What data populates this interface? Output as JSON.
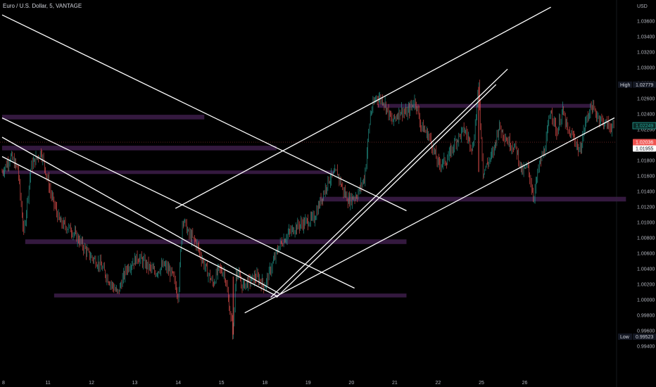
{
  "header": {
    "symbol_title": "Euro / U.S. Dollar, 5, VANTAGE"
  },
  "chart_data": {
    "type": "candlestick",
    "currency": "USD",
    "ylim": [
      0.99,
      1.038
    ],
    "y_ticks": [
      "0.99400",
      "0.99600",
      "0.99800",
      "1.00000",
      "1.00200",
      "1.00400",
      "1.00600",
      "1.00800",
      "1.01000",
      "1.01200",
      "1.01400",
      "1.01600",
      "1.01800",
      "1.02000",
      "1.02200",
      "1.02400",
      "1.02600",
      "1.02800",
      "1.03000",
      "1.03200",
      "1.03400",
      "1.03600"
    ],
    "x_ticks": [
      "8",
      "11",
      "12",
      "13",
      "14",
      "15",
      "18",
      "19",
      "20",
      "21",
      "22",
      "25",
      "26"
    ],
    "price_tags": {
      "high": {
        "label": "High",
        "value": "1.02779"
      },
      "last_green": {
        "value": "1.02249"
      },
      "current": {
        "value": "1.02036",
        "countdown": "02:51"
      },
      "white": {
        "value": "1.01955"
      },
      "low": {
        "label": "Low",
        "value": "0.99523"
      }
    },
    "price_path": [
      [
        0,
        1.0165
      ],
      [
        0.3,
        1.0185
      ],
      [
        0.55,
        1.0168
      ],
      [
        0.75,
        1.0085
      ],
      [
        1,
        1.0172
      ],
      [
        1.35,
        1.0192
      ],
      [
        1.7,
        1.0135
      ],
      [
        2,
        1.01
      ],
      [
        2.4,
        1.009
      ],
      [
        2.7,
        1.0075
      ],
      [
        3,
        1.0058
      ],
      [
        3.4,
        1.0045
      ],
      [
        3.7,
        1.0025
      ],
      [
        4,
        1.0008
      ],
      [
        4.3,
        1.004
      ],
      [
        4.7,
        1.0055
      ],
      [
        5,
        1.0045
      ],
      [
        5.3,
        1.0035
      ],
      [
        5.6,
        1.0045
      ],
      [
        5.9,
        1.0032
      ],
      [
        6.1,
        1.0005
      ],
      [
        6.25,
        1.0108
      ],
      [
        6.45,
        1.0085
      ],
      [
        6.7,
        1.0075
      ],
      [
        7,
        1.0045
      ],
      [
        7.3,
        1.002
      ],
      [
        7.5,
        1.004
      ],
      [
        7.7,
        1.0035
      ],
      [
        8,
        0.9955
      ],
      [
        8.1,
        1.004
      ],
      [
        8.3,
        1.0018
      ],
      [
        8.6,
        1.0025
      ],
      [
        8.8,
        1.003
      ],
      [
        9.1,
        1.0018
      ],
      [
        9.3,
        1.004
      ],
      [
        9.6,
        1.007
      ],
      [
        9.9,
        1.0085
      ],
      [
        10.2,
        1.0095
      ],
      [
        10.5,
        1.01
      ],
      [
        10.8,
        1.0105
      ],
      [
        11,
        1.0125
      ],
      [
        11.3,
        1.0155
      ],
      [
        11.6,
        1.0165
      ],
      [
        11.8,
        1.0142
      ],
      [
        12,
        1.0128
      ],
      [
        12.3,
        1.0136
      ],
      [
        12.55,
        1.0158
      ],
      [
        12.75,
        1.024
      ],
      [
        12.95,
        1.0262
      ],
      [
        13.2,
        1.0258
      ],
      [
        13.5,
        1.023
      ],
      [
        13.8,
        1.0245
      ],
      [
        14,
        1.024
      ],
      [
        14.3,
        1.0258
      ],
      [
        14.5,
        1.0225
      ],
      [
        14.8,
        1.021
      ],
      [
        15.1,
        1.0175
      ],
      [
        15.4,
        1.018
      ],
      [
        15.7,
        1.0205
      ],
      [
        16,
        1.022
      ],
      [
        16.3,
        1.0195
      ],
      [
        16.5,
        1.0275
      ],
      [
        16.65,
        1.0165
      ],
      [
        17,
        1.019
      ],
      [
        17.2,
        1.0225
      ],
      [
        17.5,
        1.0205
      ],
      [
        17.8,
        1.0195
      ],
      [
        18,
        1.0165
      ],
      [
        18.2,
        1.0172
      ],
      [
        18.4,
        1.0132
      ],
      [
        18.6,
        1.0175
      ],
      [
        18.8,
        1.0195
      ],
      [
        19,
        1.0248
      ],
      [
        19.2,
        1.0215
      ],
      [
        19.4,
        1.0245
      ],
      [
        19.6,
        1.0215
      ],
      [
        19.8,
        1.021
      ],
      [
        20,
        1.019
      ],
      [
        20.2,
        1.023
      ],
      [
        20.4,
        1.025
      ],
      [
        20.6,
        1.0238
      ],
      [
        20.8,
        1.023
      ],
      [
        21,
        1.0225
      ],
      [
        21.2,
        1.0222
      ]
    ],
    "high_pos": [
      16.5,
      1.0275
    ],
    "low_pos": [
      8.0,
      0.9955
    ],
    "zones": [
      {
        "x": [
          0,
          7
        ],
        "y": [
          1.0233,
          1.0239
        ]
      },
      {
        "x": [
          0,
          9.5
        ],
        "y": [
          1.0193,
          1.0199
        ]
      },
      {
        "x": [
          0,
          11.5
        ],
        "y": [
          1.0163,
          1.0167
        ]
      },
      {
        "x": [
          0.8,
          14.0
        ],
        "y": [
          1.0072,
          1.0078
        ]
      },
      {
        "x": [
          1.8,
          14.0
        ],
        "y": [
          1.0003,
          1.0008
        ]
      },
      {
        "x": [
          11.0,
          21.6
        ],
        "y": [
          1.0127,
          1.0133
        ]
      },
      {
        "x": [
          13.0,
          20.4
        ],
        "y": [
          1.0248,
          1.0253
        ]
      }
    ],
    "trendlines": [
      {
        "p1": [
          0,
          1.0368
        ],
        "p2": [
          14.0,
          1.0115
        ]
      },
      {
        "p1": [
          0,
          1.0235
        ],
        "p2": [
          12.2,
          1.0015
        ]
      },
      {
        "p1": [
          0,
          1.021
        ],
        "p2": [
          9.6,
          1.0008
        ]
      },
      {
        "p1": [
          0,
          1.0185
        ],
        "p2": [
          9.5,
          1.0005
        ]
      },
      {
        "p1": [
          6.0,
          1.0118
        ],
        "p2": [
          19.0,
          1.0378
        ]
      },
      {
        "p1": [
          8.4,
          0.9983
        ],
        "p2": [
          21.2,
          1.0235
        ]
      },
      {
        "p1": [
          9.3,
          1.0003
        ],
        "p2": [
          17.5,
          1.0298
        ]
      },
      {
        "p1": [
          9.5,
          1.0003
        ],
        "p2": [
          17.1,
          1.0278
        ]
      }
    ]
  }
}
